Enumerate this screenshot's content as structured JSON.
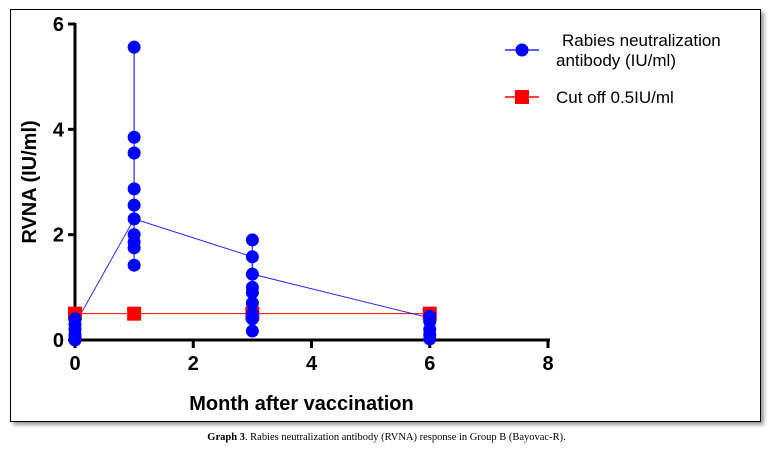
{
  "chart_data": {
    "type": "scatter",
    "title": "",
    "xlabel": "Month after vaccination",
    "ylabel": "RVNA (IU/ml)",
    "xlim": [
      0,
      8
    ],
    "ylim": [
      0,
      6
    ],
    "xticks": [
      0,
      2,
      4,
      6,
      8
    ],
    "yticks": [
      0,
      2,
      4,
      6
    ],
    "grid": false,
    "legend_position": "top-right",
    "series": [
      {
        "name": "Rabies neutralization antibody (IU/ml)",
        "color": "#0000ff",
        "marker": "circle",
        "points": [
          {
            "x": 0,
            "values": [
              0.4,
              0.3,
              0.2,
              0.1,
              0.05,
              0.0
            ]
          },
          {
            "x": 1,
            "values": [
              5.56,
              3.85,
              3.55,
              2.87,
              2.56,
              2.3,
              2.0,
              1.86,
              1.75,
              1.42
            ]
          },
          {
            "x": 3,
            "values": [
              1.9,
              1.58,
              1.25,
              1.0,
              0.9,
              0.7,
              0.5,
              0.4,
              0.17
            ]
          },
          {
            "x": 6,
            "values": [
              0.45,
              0.35,
              0.2,
              0.1,
              0.02
            ]
          }
        ],
        "mean_line": [
          [
            0,
            0.3
          ],
          [
            1,
            2.3
          ],
          [
            3,
            1.58
          ],
          [
            3,
            1.25
          ],
          [
            6,
            0.42
          ]
        ]
      },
      {
        "name": "Cut off 0.5IU/ml",
        "color": "#ff0000",
        "marker": "square",
        "x": [
          0,
          1,
          3,
          6
        ],
        "y": [
          0.5,
          0.5,
          0.5,
          0.5
        ]
      }
    ],
    "legend": [
      "Rabies neutralization antibody (IU/ml)",
      "Cut off 0.5IU/ml"
    ],
    "legend_lines": [
      [
        "Rabies neutralization",
        "antibody (IU/ml)"
      ],
      [
        "Cut off 0.5IU/ml"
      ]
    ]
  },
  "caption": {
    "label": "Graph 3",
    "text": ". Rabies neutralization antibody (RVNA) response in Group B (Bayovac-R)."
  }
}
